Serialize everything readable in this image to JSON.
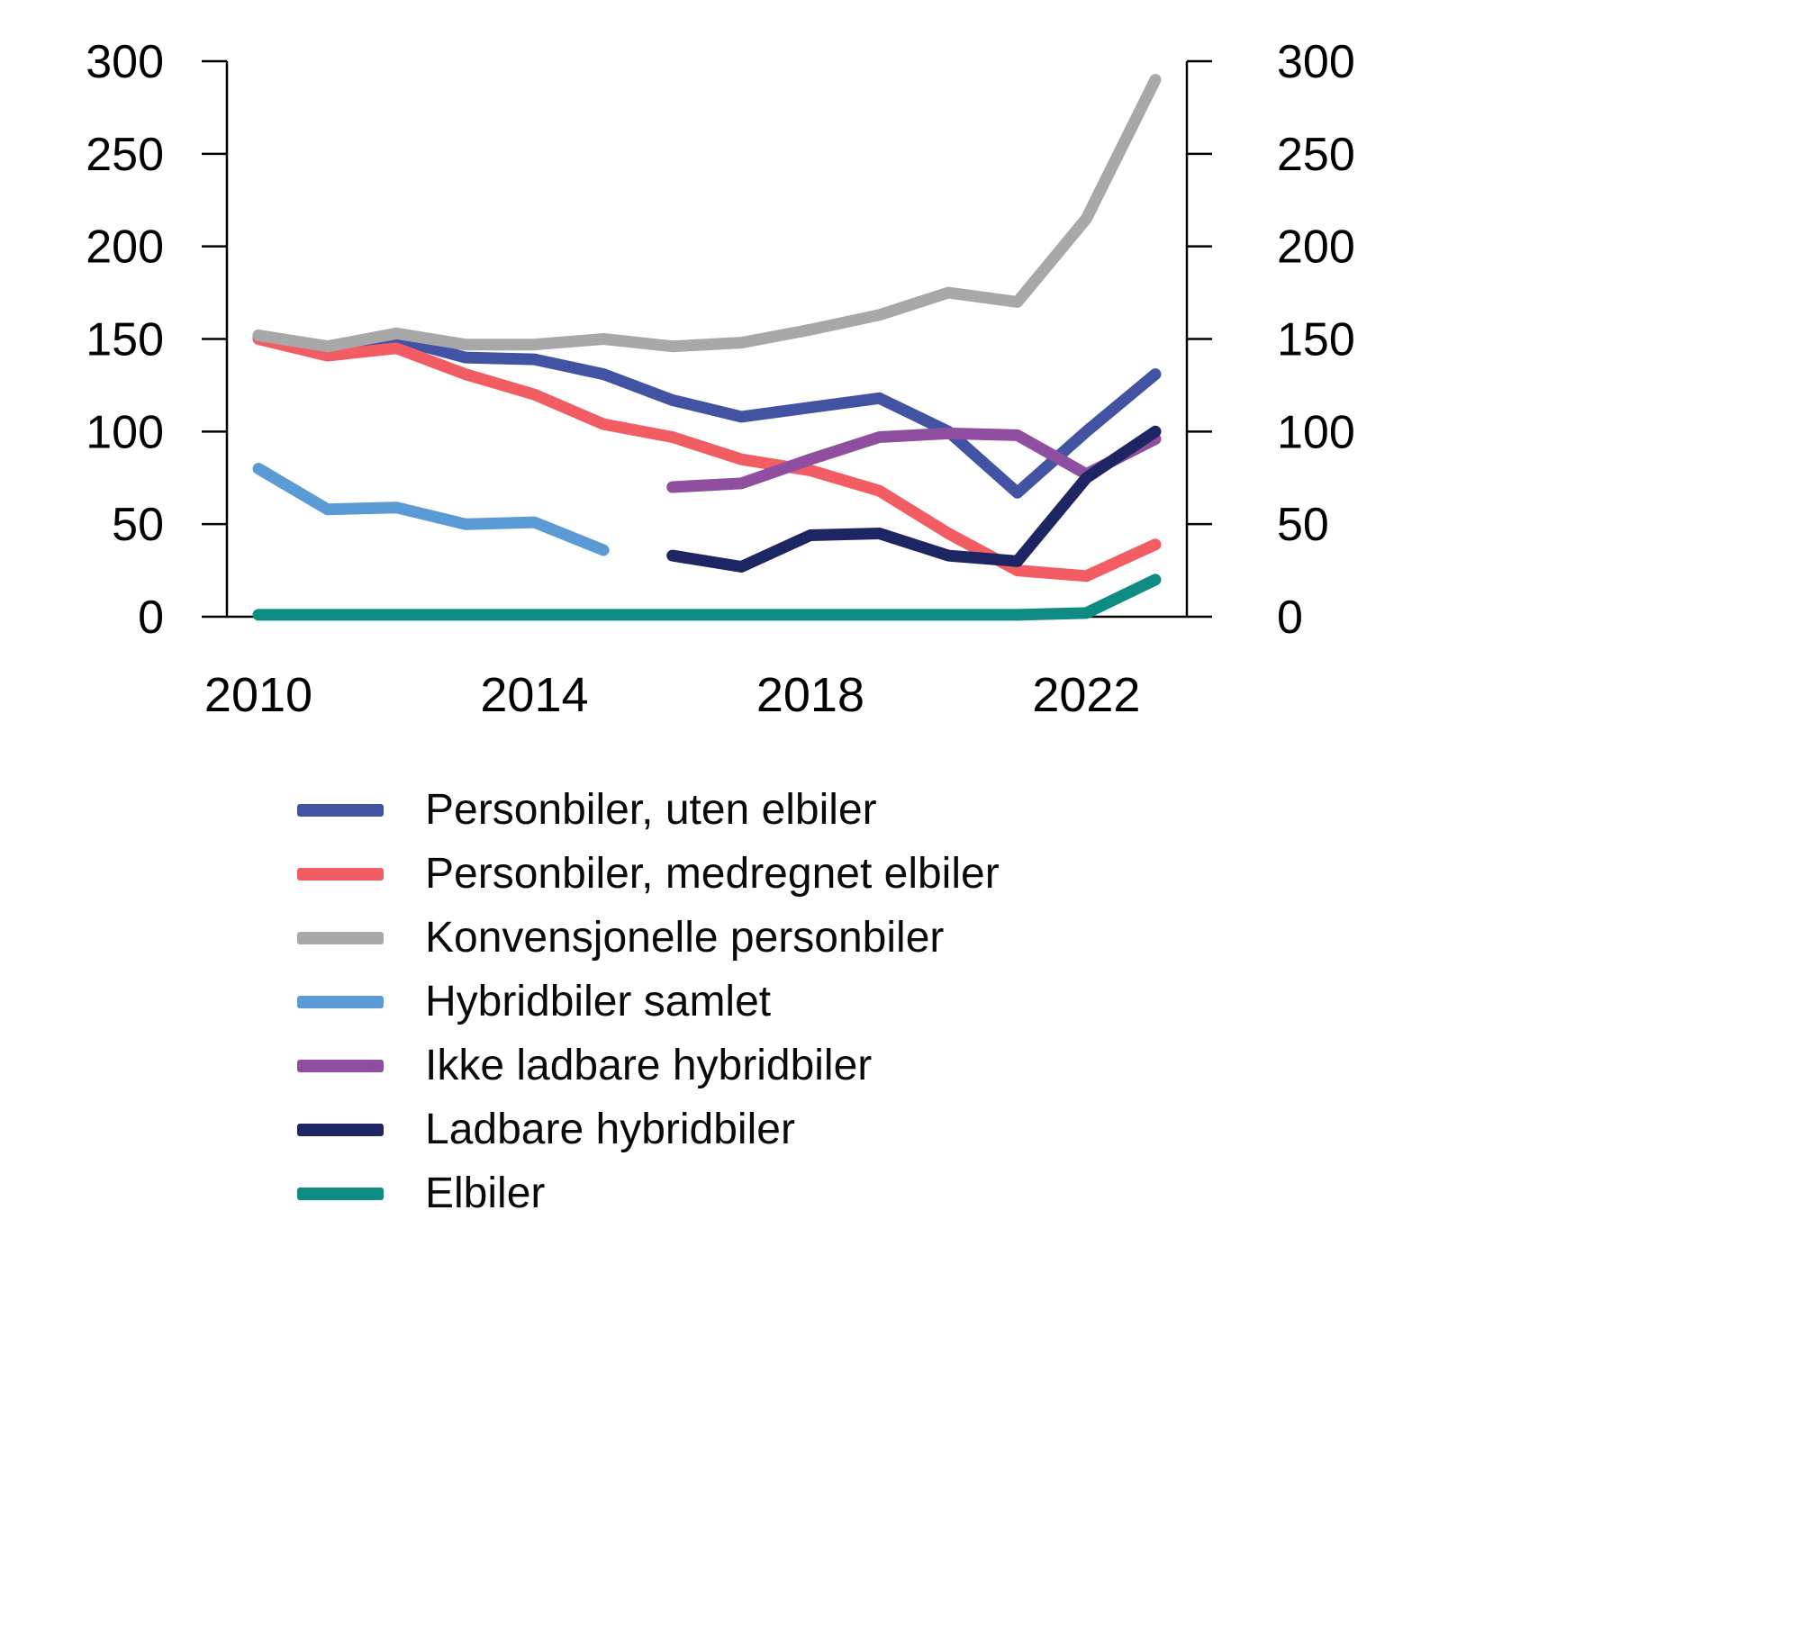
{
  "chart_data": {
    "type": "line",
    "title": "",
    "xlabel": "",
    "ylabel": "",
    "x": [
      2010,
      2011,
      2012,
      2013,
      2014,
      2015,
      2016,
      2017,
      2018,
      2019,
      2020,
      2021,
      2022,
      2023
    ],
    "x_ticks": [
      2010,
      2014,
      2018,
      2022
    ],
    "y_ticks": [
      0,
      50,
      100,
      150,
      200,
      250,
      300
    ],
    "ylim": [
      0,
      300
    ],
    "grid": false,
    "dual_y_axis": true,
    "legend_position": "bottom-left",
    "axis_color": "#000000",
    "series": [
      {
        "id": "personbiler-uten-elbiler",
        "name": "Personbiler, uten elbiler",
        "color": "#4153A2",
        "values": [
          151,
          146,
          150,
          140,
          139,
          131,
          117,
          108,
          113,
          118,
          100,
          67,
          100,
          131
        ]
      },
      {
        "id": "personbiler-medregnet-elbiler",
        "name": "Personbiler, medregnet elbiler",
        "color": "#F25C63",
        "values": [
          150,
          141,
          145,
          131,
          120,
          104,
          97,
          85,
          79,
          68,
          45,
          25,
          22,
          39
        ]
      },
      {
        "id": "konvensjonelle-personbiler",
        "name": "Konvensjonelle personbiler",
        "color": "#A8A8A8",
        "values": [
          152,
          146,
          153,
          147,
          147,
          150,
          146,
          148,
          155,
          163,
          175,
          170,
          215,
          290
        ]
      },
      {
        "id": "hybridbiler-samlet",
        "name": "Hybridbiler samlet",
        "color": "#5B9BD5",
        "values": [
          80,
          58,
          59,
          50,
          51,
          36,
          null,
          null,
          null,
          null,
          null,
          null,
          null,
          null
        ]
      },
      {
        "id": "ikke-ladbare-hybridbiler",
        "name": "Ikke ladbare hybridbiler",
        "color": "#8F4E9F",
        "values": [
          null,
          null,
          null,
          null,
          null,
          null,
          70,
          72,
          85,
          97,
          99,
          98,
          77,
          96
        ]
      },
      {
        "id": "ladbare-hybridbiler",
        "name": "Ladbare hybridbiler",
        "color": "#1E2563",
        "values": [
          null,
          null,
          null,
          null,
          null,
          null,
          33,
          27,
          44,
          45,
          33,
          30,
          75,
          100
        ]
      },
      {
        "id": "elbiler",
        "name": "Elbiler",
        "color": "#0E8C84",
        "values": [
          1,
          1,
          1,
          1,
          1,
          1,
          1,
          1,
          1,
          1,
          1,
          1,
          2,
          20
        ]
      }
    ]
  }
}
